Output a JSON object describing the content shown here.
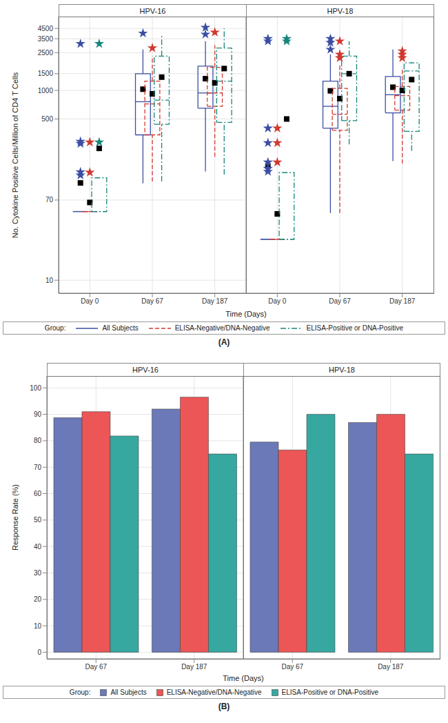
{
  "chart_data": [
    {
      "type": "box",
      "title": "(A)",
      "facets": [
        "HPV-16",
        "HPV-18"
      ],
      "categories": [
        "Day 0",
        "Day 67",
        "Day 187"
      ],
      "x_label": "Time (Days)",
      "y_label": "No. Cytokine Positive Cells/Million of CD4 T Cells",
      "legend_title": "Group:",
      "legend": "bottom",
      "log": "y",
      "grid": true,
      "ylim": [
        7.3,
        6000
      ],
      "yticks": [
        10,
        70,
        500,
        1000,
        1500,
        2500,
        3500,
        4500
      ],
      "series": [
        {
          "name": "All Subjects",
          "color": "#3b4ea3",
          "line_style": "solid",
          "values": [
            [
              {
                "min": 53,
                "q1": 53,
                "median": 53,
                "q3": 53,
                "max": 53,
                "mean": 106,
                "outliers": [
                  3100,
                  290,
                  275,
                  138,
                  128
                ]
              },
              {
                "min": 105,
                "q1": 340,
                "median": 760,
                "q3": 1500,
                "max": 2700,
                "mean": 1030,
                "outliers": [
                  4000
                ]
              },
              {
                "min": 140,
                "q1": 650,
                "median": 940,
                "q3": 1800,
                "max": 3300,
                "mean": 1330,
                "outliers": [
                  4600,
                  3900
                ]
              }
            ],
            [
              {
                "min": 27,
                "q1": 27,
                "median": 27,
                "q3": 27,
                "max": 27,
                "mean": 160,
                "outliers": [
                  3500,
                  3300,
                  400,
                  280,
                  175,
                  150,
                  140
                ]
              },
              {
                "min": 51,
                "q1": 400,
                "median": 680,
                "q3": 1250,
                "max": 2400,
                "mean": 990,
                "outliers": [
                  3500,
                  3200,
                  2700
                ]
              },
              {
                "min": 180,
                "q1": 580,
                "median": 900,
                "q3": 1400,
                "max": 2700,
                "mean": 1080,
                "outliers": []
              }
            ]
          ]
        },
        {
          "name": "ELISA-Negative/DNA-Negative",
          "color": "#d0392f",
          "line_style": "dashed",
          "values": [
            [
              {
                "min": 53,
                "q1": 53,
                "median": 53,
                "q3": 53,
                "max": 53,
                "mean": 66,
                "outliers": [
                  285,
                  137
                ]
              },
              {
                "min": 110,
                "q1": 340,
                "median": 720,
                "q3": 1250,
                "max": 2300,
                "mean": 920,
                "outliers": [
                  2800
                ]
              },
              {
                "min": 200,
                "q1": 680,
                "median": 940,
                "q3": 1750,
                "max": 3000,
                "mean": 1200,
                "outliers": [
                  4100
                ]
              }
            ],
            [
              {
                "min": 27,
                "q1": 27,
                "median": 27,
                "q3": 27,
                "max": 27,
                "mean": 50,
                "outliers": [
                  400,
                  280,
                  175
                ]
              },
              {
                "min": 51,
                "q1": 380,
                "median": 560,
                "q3": 1050,
                "max": 1850,
                "mean": 820,
                "outliers": [
                  3300,
                  2400,
                  2200
                ]
              },
              {
                "min": 170,
                "q1": 620,
                "median": 880,
                "q3": 1100,
                "max": 1700,
                "mean": 1000,
                "outliers": [
                  2600,
                  2400,
                  2200
                ]
              }
            ]
          ]
        },
        {
          "name": "ELISA-Positive or DNA-Positive",
          "color": "#16857a",
          "line_style": "dashdot",
          "values": [
            [
              {
                "min": 53,
                "q1": 53,
                "median": 53,
                "q3": 120,
                "max": 120,
                "mean": 245,
                "outliers": [
                  3100,
                  285
                ]
              },
              {
                "min": 110,
                "q1": 440,
                "median": 790,
                "q3": 2300,
                "max": 3900,
                "mean": 1380,
                "outliers": []
              },
              {
                "min": 130,
                "q1": 460,
                "median": 1250,
                "q3": 2800,
                "max": 4500,
                "mean": 1700,
                "outliers": []
              }
            ],
            [
              {
                "min": 27,
                "q1": 27,
                "median": 27,
                "q3": 136,
                "max": 136,
                "mean": 500,
                "outliers": [
                  3500,
                  3300
                ]
              },
              {
                "min": 270,
                "q1": 480,
                "median": 1500,
                "q3": 2300,
                "max": 3300,
                "mean": 1500,
                "outliers": []
              },
              {
                "min": 230,
                "q1": 370,
                "median": 1600,
                "q3": 1950,
                "max": 2000,
                "mean": 1300,
                "outliers": []
              }
            ]
          ]
        }
      ]
    },
    {
      "type": "bar",
      "title": "(B)",
      "facets": [
        "HPV-16",
        "HPV-18"
      ],
      "categories": [
        "Day 67",
        "Day 187"
      ],
      "x_label": "Time (Days)",
      "y_label": "Response Rate (%)",
      "legend_title": "Group:",
      "legend": "bottom",
      "grid": true,
      "ylim": [
        -2.5,
        104.5
      ],
      "yticks": [
        0,
        10,
        20,
        30,
        40,
        50,
        60,
        70,
        80,
        90,
        100
      ],
      "series": [
        {
          "name": "All Subjects",
          "color": "#6b79b8",
          "values": [
            [
              88.7,
              92
            ],
            [
              79.5,
              86.9
            ]
          ]
        },
        {
          "name": "ELISA-Negative/DNA-Negative",
          "color": "#ec5656",
          "values": [
            [
              91,
              96.5
            ],
            [
              76.5,
              90
            ]
          ]
        },
        {
          "name": "ELISA-Positive or DNA-Positive",
          "color": "#36a8a0",
          "values": [
            [
              81.8,
              75
            ],
            [
              90,
              75
            ]
          ]
        }
      ]
    }
  ]
}
